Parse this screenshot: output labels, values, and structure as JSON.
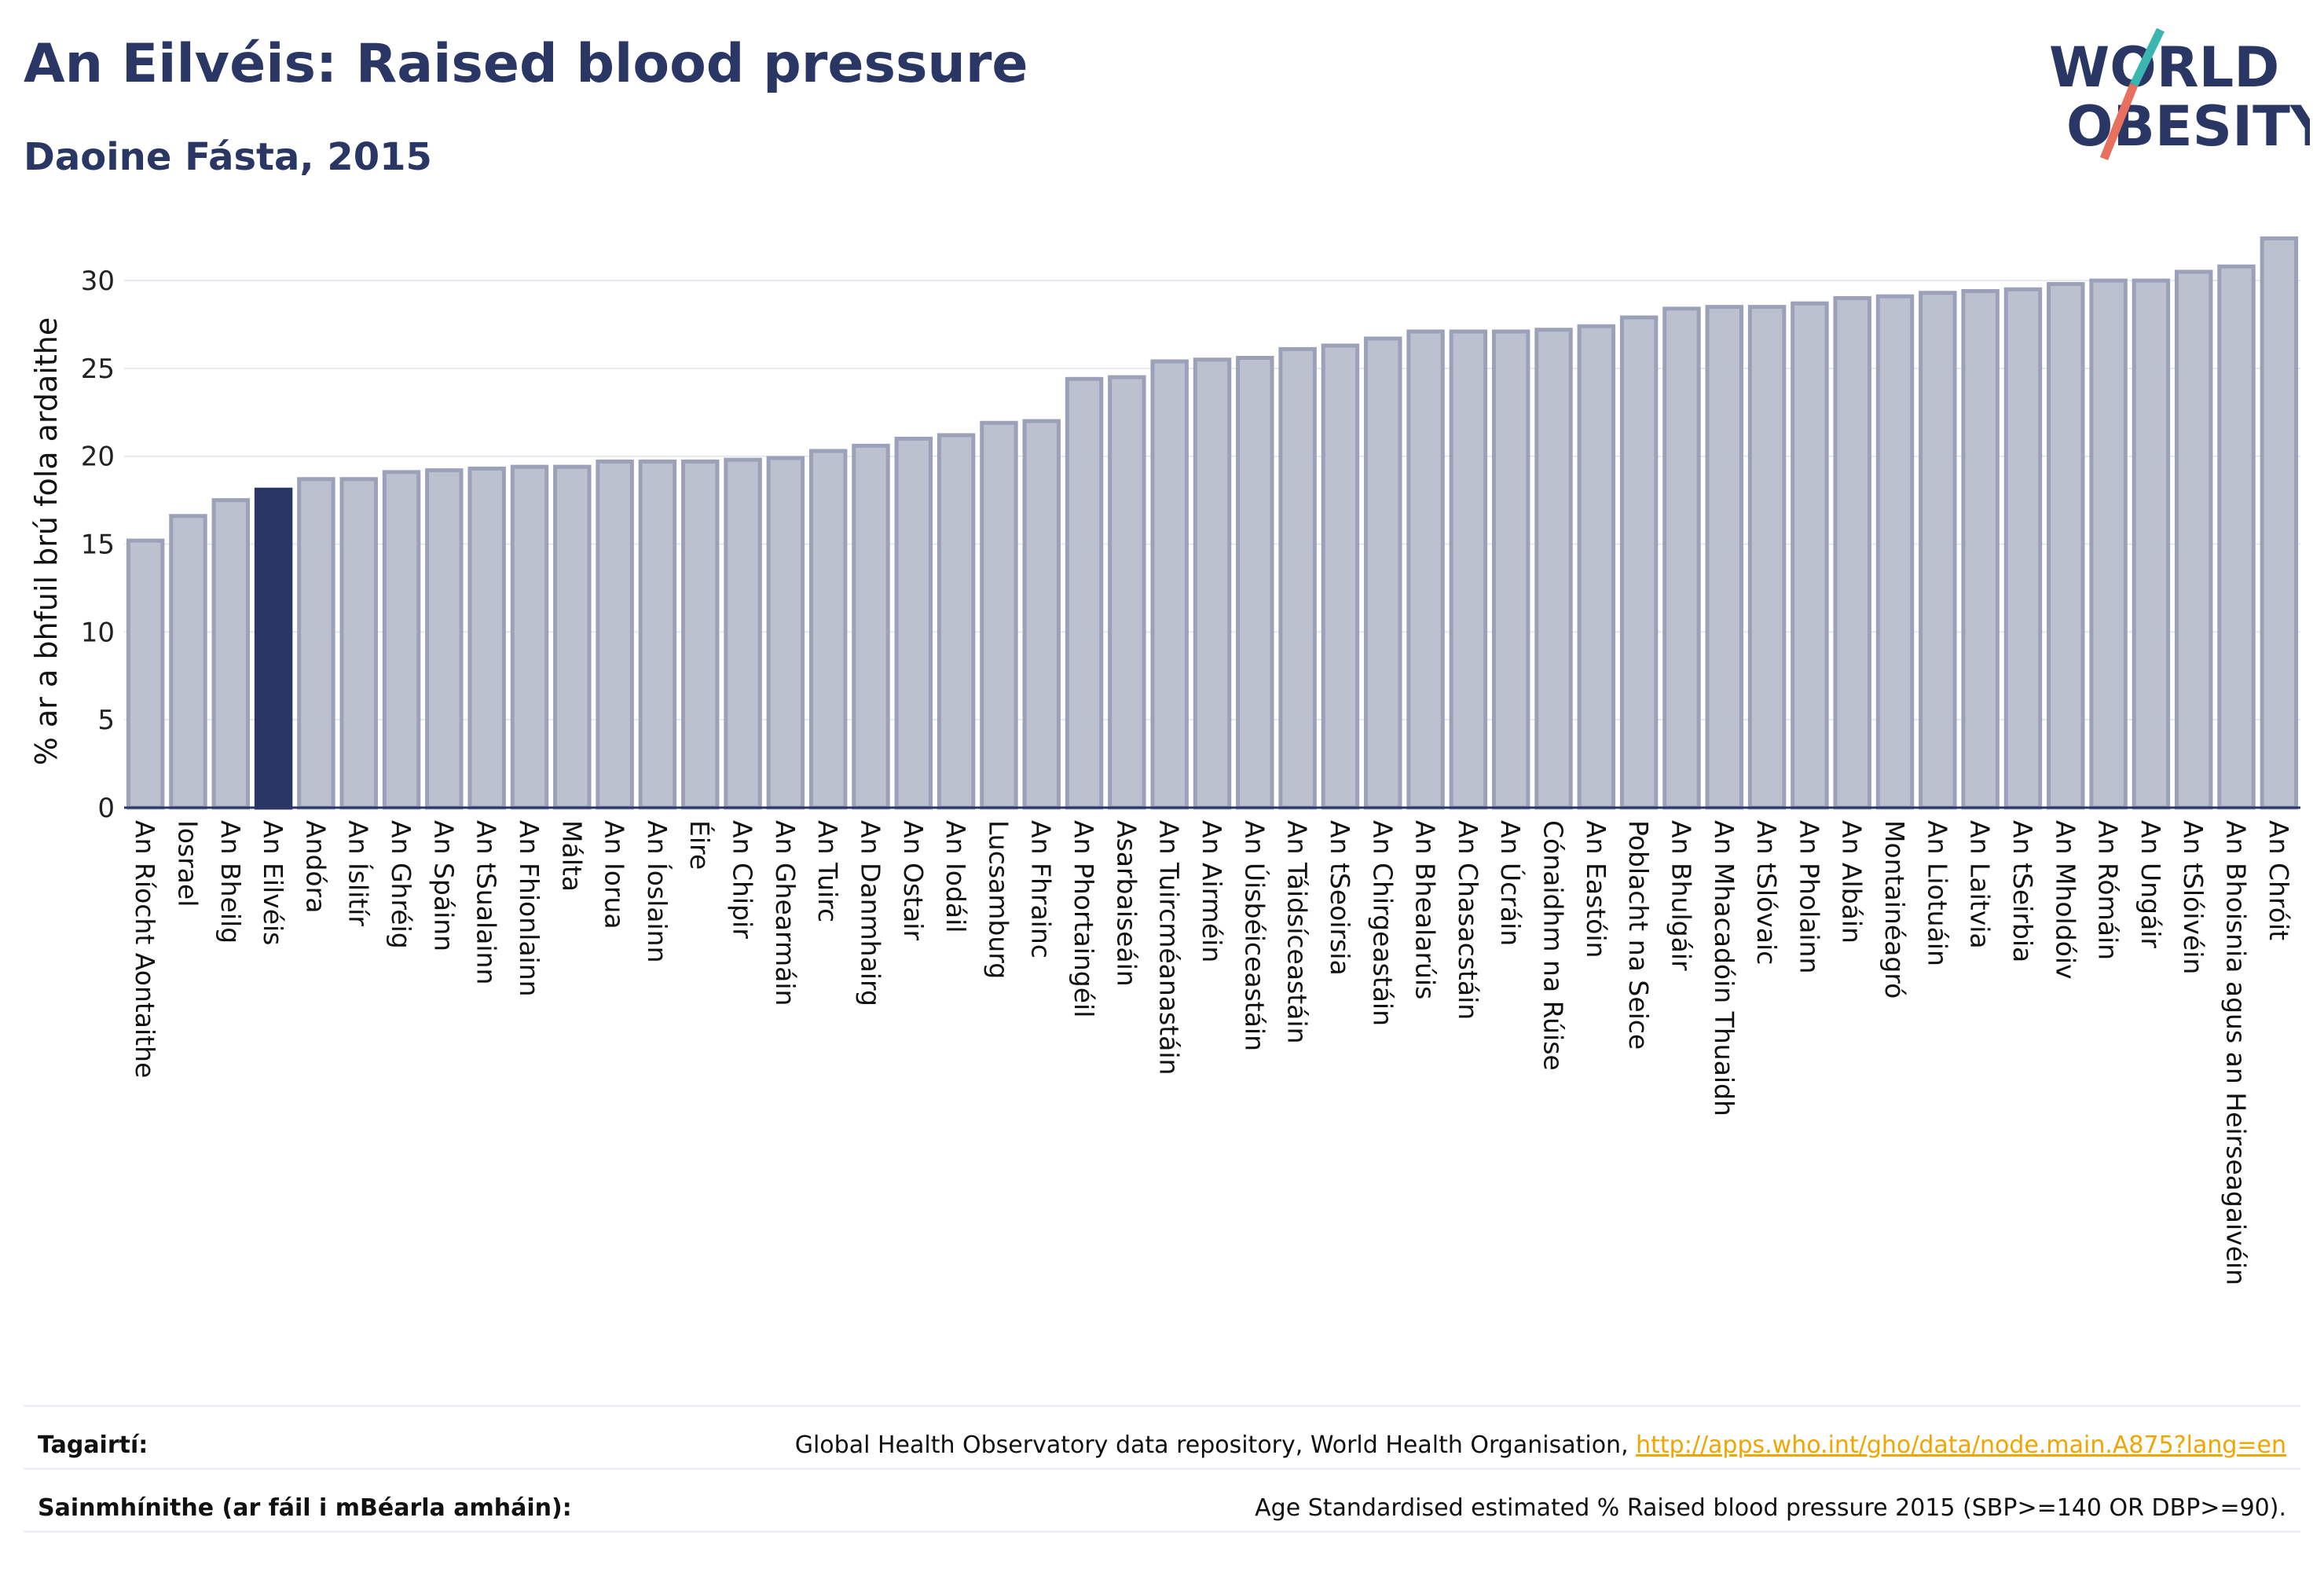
{
  "header": {
    "title": "An Eilvéis: Raised blood pressure",
    "subtitle": "Daoine Fásta, 2015"
  },
  "logo": {
    "line1": "WORLD",
    "line2": "OBESITY"
  },
  "colors": {
    "title": "#2a3764",
    "highlight_bar": "#2a3764",
    "bar_fill": "#bcc1d0",
    "bar_stroke": "#9ba1b8",
    "logo_teal": "#3ab5b0",
    "logo_coral": "#e8705f",
    "link": "#f0a500"
  },
  "chart_data": {
    "type": "bar",
    "title": "An Eilvéis: Raised blood pressure",
    "subtitle": "Daoine Fásta, 2015",
    "xlabel": "",
    "ylabel": "% ar a bhfuil brú fola ardaithe",
    "ylim": [
      0,
      33
    ],
    "yticks": [
      0,
      5,
      10,
      15,
      20,
      25,
      30
    ],
    "grid": true,
    "highlight": "An Eilvéis",
    "categories": [
      "An Ríocht Aontaithe",
      "Iosrael",
      "An Bheilg",
      "An Eilvéis",
      "Andóra",
      "An Íslitír",
      "An Ghréig",
      "An Spáinn",
      "An tSualainn",
      "An Fhionlainn",
      "Málta",
      "An Iorua",
      "An Íoslainn",
      "Éire",
      "An Chipir",
      "An Ghearmáin",
      "An Tuirc",
      "An Danmhairg",
      "An Ostair",
      "An Iodáil",
      "Lucsamburg",
      "An Fhrainc",
      "An Phortaingéil",
      "Asarbaiseáin",
      "An Tuircméanastáin",
      "An Airméin",
      "An Úisbéiceastáin",
      "An Táidsíceastáin",
      "An tSeoirsia",
      "An Chirgeastáin",
      "An Bhealarúis",
      "An Chasacstáin",
      "An Úcráin",
      "Cónaidhm na Rúise",
      "An Eastóin",
      "Poblacht na Seice",
      "An Bhulgáir",
      "An Mhacadóin Thuaidh",
      "An tSlóvaic",
      "An Pholainn",
      "An Albáin",
      "Montainéagró",
      "An Liotuáin",
      "An Laitvia",
      "An tSeirbia",
      "An Mholdóiv",
      "An Rómáin",
      "An Ungáir",
      "An tSlóivéin",
      "An Bhoisnia agus an Heirseagaivéin",
      "An Chróit"
    ],
    "values": [
      15.2,
      16.6,
      17.5,
      18.1,
      18.7,
      18.7,
      19.1,
      19.2,
      19.3,
      19.4,
      19.4,
      19.7,
      19.7,
      19.7,
      19.8,
      19.9,
      20.3,
      20.6,
      21.0,
      21.2,
      21.9,
      22.0,
      24.4,
      24.5,
      25.4,
      25.5,
      25.6,
      26.1,
      26.3,
      26.7,
      27.1,
      27.1,
      27.1,
      27.2,
      27.4,
      27.9,
      28.4,
      28.5,
      28.5,
      28.7,
      29.0,
      29.1,
      29.3,
      29.4,
      29.5,
      29.8,
      30.0,
      30.0,
      30.5,
      30.8,
      32.4
    ]
  },
  "footer": {
    "references_label": "Tagairtí:",
    "references_text": "Global Health Observatory data repository, World Health Organisation, ",
    "references_link": "http://apps.who.int/gho/data/node.main.A875?lang=en",
    "definitions_label": "Sainmhínithe (ar fáil i mBéarla amháin):",
    "definitions_text": "Age Standardised estimated % Raised blood pressure 2015 (SBP>=140 OR DBP>=90)."
  }
}
